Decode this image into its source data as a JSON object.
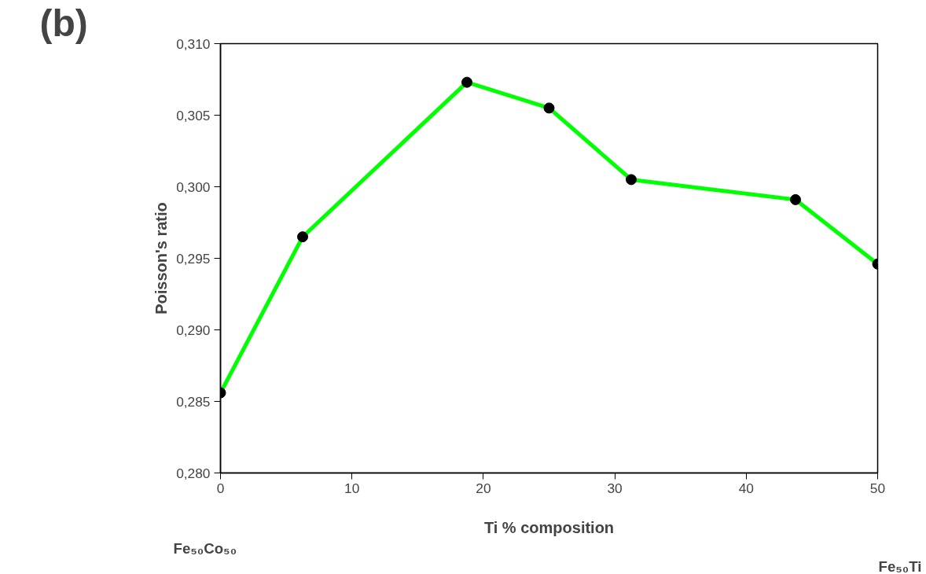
{
  "chart_data": {
    "type": "line",
    "xlabel": "Ti % composition",
    "ylabel": "Poisson's ratio",
    "annotations": [
      "(b)",
      "Fe₅₀Co₅₀",
      "Fe₅₀Ti"
    ],
    "x": [
      0,
      6.25,
      18.75,
      25,
      31.25,
      43.75,
      50
    ],
    "series": [
      {
        "color": "#00ff00",
        "values": [
          0.2856,
          0.2965,
          0.3073,
          0.3055,
          0.3005,
          0.2991,
          0.2946
        ]
      }
    ],
    "xlim": [
      0,
      50
    ],
    "xticks": [
      0,
      10,
      20,
      30,
      40,
      50
    ],
    "ylim": [
      0.28,
      0.31
    ],
    "yticks": [
      {
        "value": 0.28,
        "label": "0,280"
      },
      {
        "value": 0.285,
        "label": "0,285"
      },
      {
        "value": 0.29,
        "label": "0,290"
      },
      {
        "value": 0.295,
        "label": "0,295"
      },
      {
        "value": 0.3,
        "label": "0,300"
      },
      {
        "value": 0.305,
        "label": "0,305"
      },
      {
        "value": 0.31,
        "label": "0,310"
      }
    ],
    "marker": "circle",
    "line_style": "solid",
    "grid": false
  }
}
